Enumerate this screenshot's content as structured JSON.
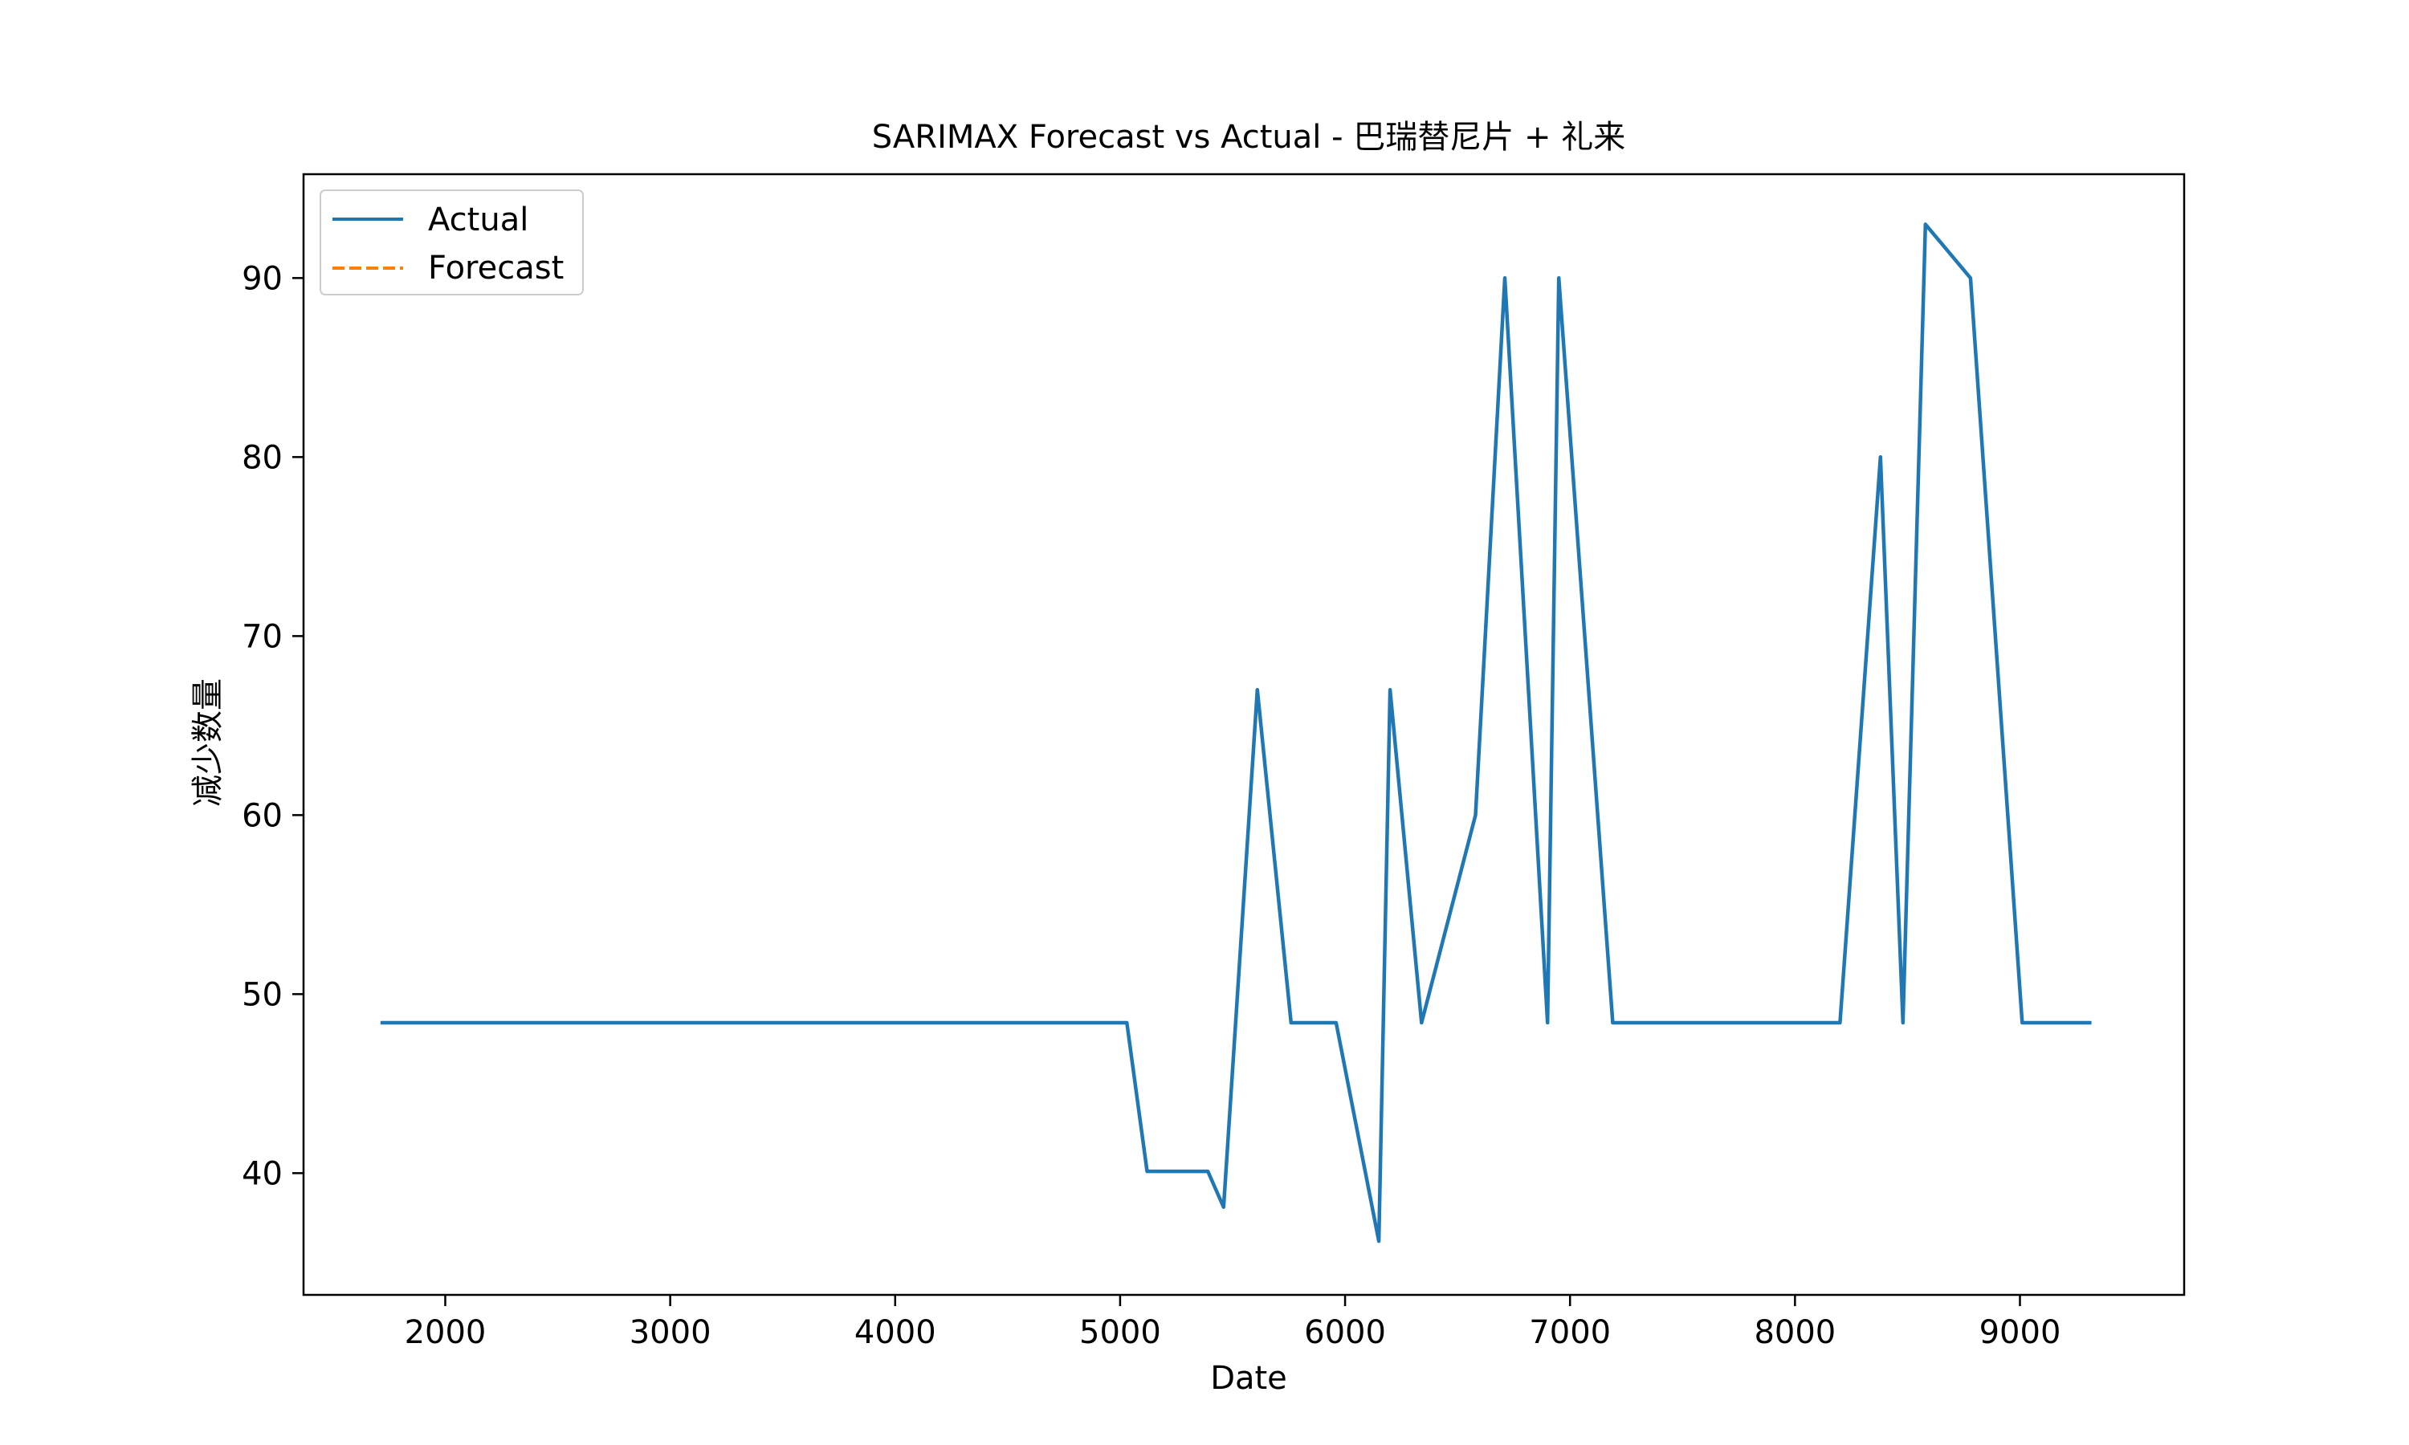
{
  "chart_data": {
    "type": "line",
    "title": "SARIMAX Forecast vs Actual - 巴瑞替尼片 + 礼来",
    "xlabel": "Date",
    "ylabel": "减少数量",
    "xlim": [
      1370,
      9730
    ],
    "ylim": [
      33.2,
      95.8
    ],
    "xticks": [
      2000,
      3000,
      4000,
      5000,
      6000,
      7000,
      8000,
      9000
    ],
    "yticks": [
      40,
      50,
      60,
      70,
      80,
      90
    ],
    "xtick_labels": [
      "2000",
      "3000",
      "4000",
      "5000",
      "6000",
      "7000",
      "8000",
      "9000"
    ],
    "ytick_labels": [
      "40",
      "50",
      "60",
      "70",
      "80",
      "90"
    ],
    "grid": false,
    "legend_placement": "upper-left",
    "series": [
      {
        "name": "Actual",
        "color": "#1f77b4",
        "style": "solid",
        "points": [
          [
            1720,
            48.4
          ],
          [
            5030,
            48.4
          ],
          [
            5120,
            40.1
          ],
          [
            5390,
            40.1
          ],
          [
            5460,
            38.1
          ],
          [
            5610,
            67.0
          ],
          [
            5760,
            48.4
          ],
          [
            5960,
            48.4
          ],
          [
            6150,
            36.2
          ],
          [
            6200,
            67.0
          ],
          [
            6340,
            48.4
          ],
          [
            6580,
            60.0
          ],
          [
            6710,
            90.0
          ],
          [
            6900,
            48.4
          ],
          [
            6950,
            90.0
          ],
          [
            7190,
            48.4
          ],
          [
            8200,
            48.4
          ],
          [
            8380,
            80.0
          ],
          [
            8480,
            48.4
          ],
          [
            8580,
            93.0
          ],
          [
            8780,
            90.0
          ],
          [
            9010,
            48.4
          ],
          [
            9310,
            48.4
          ]
        ]
      },
      {
        "name": "Forecast",
        "color": "#ff7f0e",
        "style": "dashed",
        "points": []
      }
    ]
  }
}
